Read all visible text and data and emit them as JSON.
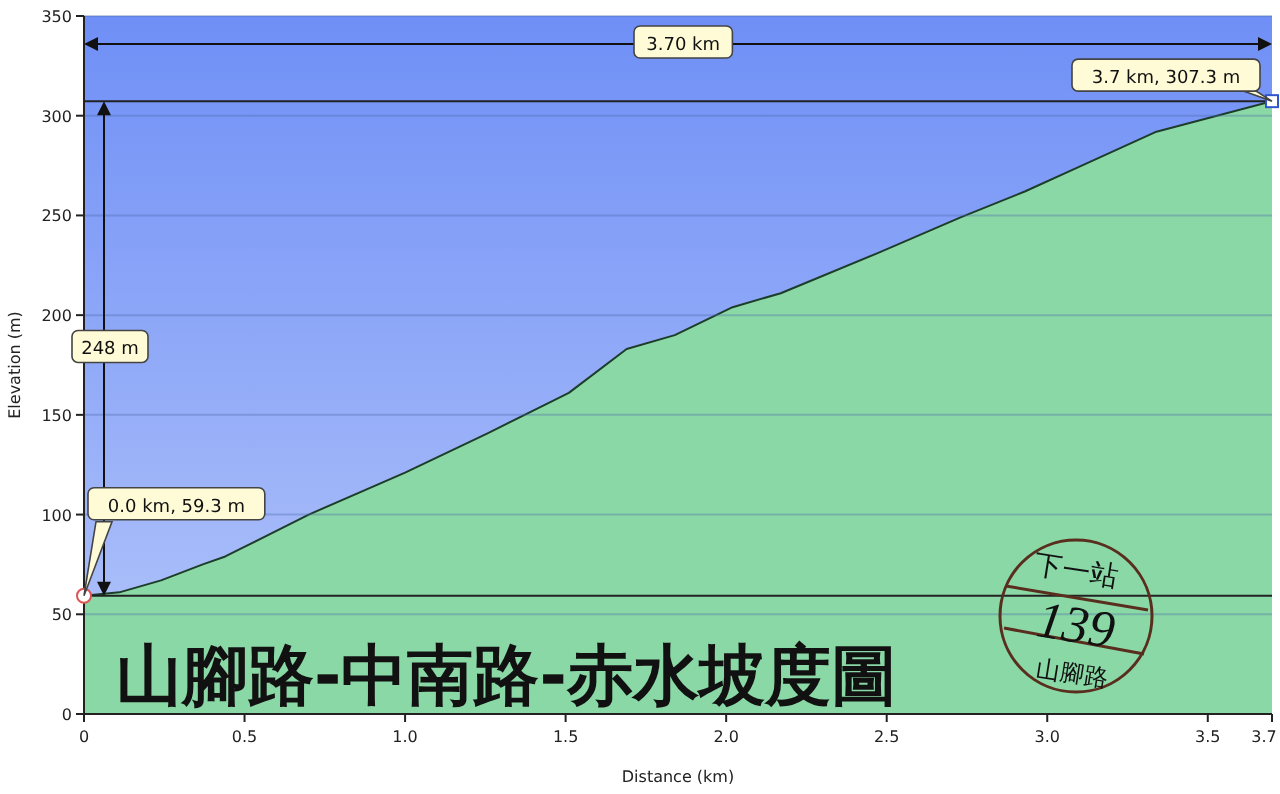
{
  "chart_data": {
    "type": "area",
    "title": "山腳路-中南路-赤水坡度圖",
    "xlabel": "Distance (km)",
    "ylabel": "Elevation (m)",
    "x": [
      0,
      0.11,
      0.24,
      0.37,
      0.44,
      0.49,
      0.7,
      1.0,
      1.26,
      1.46,
      1.51,
      1.69,
      1.84,
      2.02,
      2.17,
      2.47,
      2.73,
      2.93,
      3.08,
      3.34,
      3.7
    ],
    "series": [
      {
        "color": "#8ad8a6",
        "values": [
          59.3,
          61,
          67,
          75,
          79,
          83,
          100,
          121,
          141,
          157,
          161,
          183,
          190,
          204,
          211,
          231,
          249,
          262,
          273,
          292,
          307.3
        ]
      }
    ],
    "xlim": [
      0,
      3.7
    ],
    "xticks": [
      0,
      {
        "value": 0.5,
        "label": "0.5"
      },
      {
        "value": 1,
        "label": "1.0"
      },
      {
        "value": 1.5,
        "label": "1.5"
      },
      {
        "value": 2,
        "label": "2.0"
      },
      {
        "value": 2.5,
        "label": "2.5"
      },
      {
        "value": 3,
        "label": "3.0"
      },
      {
        "value": 3.5,
        "label": "3.5"
      },
      {
        "value": 3.7,
        "label": "3.7"
      }
    ],
    "ylim": [
      0,
      350
    ],
    "yticks": [
      0,
      50,
      100,
      150,
      200,
      250,
      300,
      350
    ],
    "grid": "y",
    "marker": "none",
    "ref_lines": [
      {
        "axis": "y",
        "value": 59.3
      },
      {
        "axis": "y",
        "value": 307.3
      }
    ],
    "annotations": [
      "3.70 km",
      "248 m",
      "下一站",
      "139",
      "山腳路",
      {
        "text": "0.0 km, 59.3 m",
        "x": 0,
        "y": 59.3
      },
      {
        "text": "3.7 km, 307.3 m",
        "x": 3.7,
        "y": 307.3
      }
    ]
  }
}
